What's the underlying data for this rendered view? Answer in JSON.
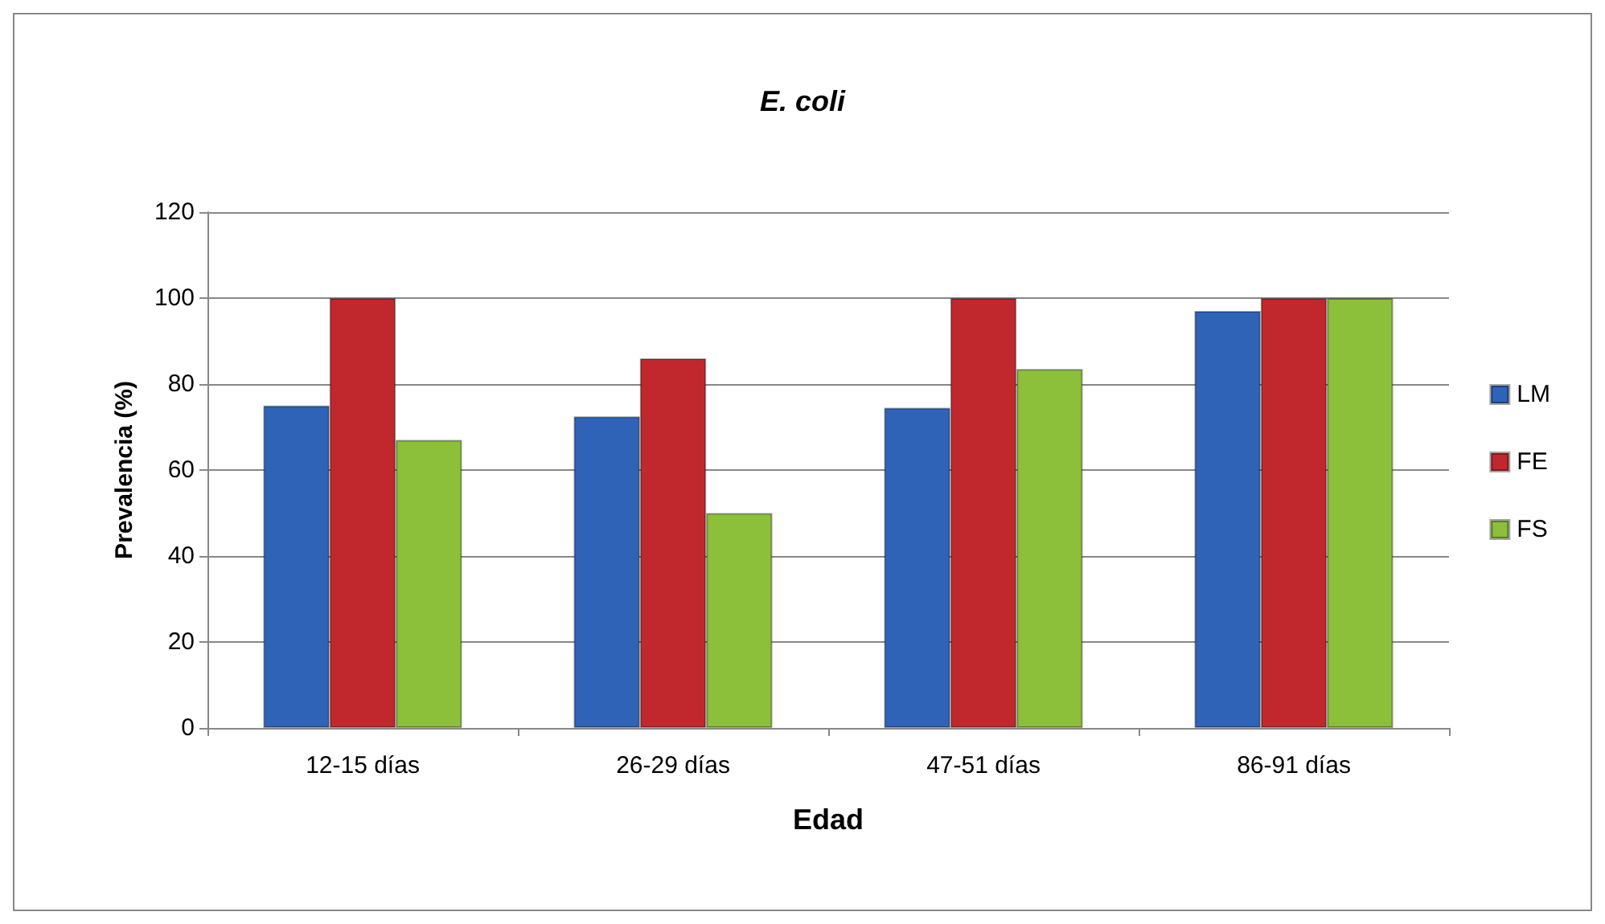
{
  "chart_data": {
    "type": "bar",
    "title": "E. coli",
    "xlabel": "Edad",
    "ylabel": "Prevalencia (%)",
    "categories": [
      "12-15 días",
      "26-29 días",
      "47-51 días",
      "86-91 días"
    ],
    "series": [
      {
        "name": "LM",
        "color": "#2f63b8",
        "values": [
          75,
          72.5,
          74.5,
          97
        ]
      },
      {
        "name": "FE",
        "color": "#c0282e",
        "values": [
          100,
          86,
          100,
          100
        ]
      },
      {
        "name": "FS",
        "color": "#8cbf3a",
        "values": [
          67,
          50,
          83.5,
          100
        ]
      }
    ],
    "ylim": [
      0,
      120
    ],
    "yticks": [
      0,
      20,
      40,
      60,
      80,
      100,
      120
    ],
    "grid": "y",
    "legend": "right"
  }
}
